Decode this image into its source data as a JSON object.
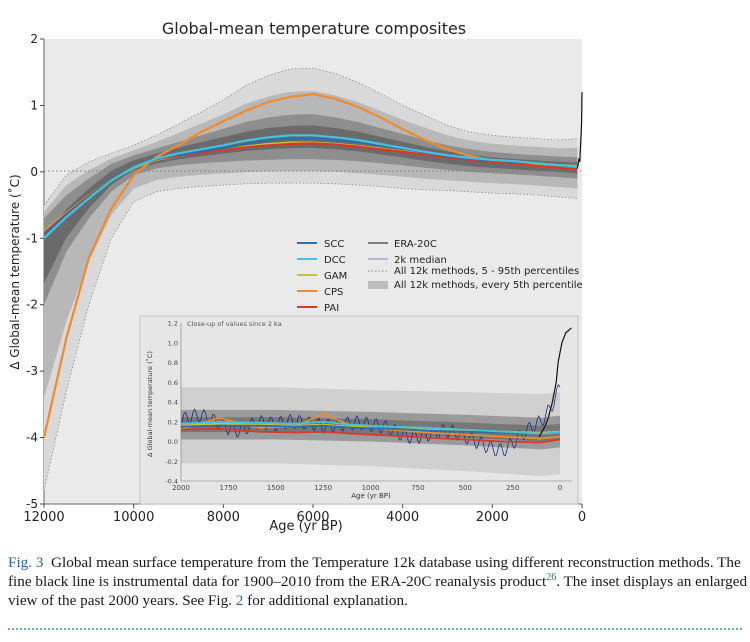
{
  "figure": {
    "title": "Global-mean temperature composites",
    "colors": {
      "SCC": "#2f6ea8",
      "DCC": "#45c2de",
      "GAM": "#c8c23a",
      "CPS": "#f08a2c",
      "PAI": "#d83a2a",
      "ERA": "#111111",
      "median2k": "#1f2a8a",
      "bandLight": "#d9d9d9",
      "bandMid": "#b8b8b8",
      "bandDark": "#8e8e8e",
      "bandCore": "#6a6a6a",
      "plotBg": "#eaeaea"
    },
    "legend": {
      "scc": "SCC",
      "dcc": "DCC",
      "gam": "GAM",
      "cps": "CPS",
      "pai": "PAI",
      "era": "ERA-20C",
      "median": "2k median",
      "pct": "All 12k methods, 5 - 95th percentiles",
      "every5": "All 12k methods, every 5th percentile"
    }
  },
  "chart_data": [
    {
      "type": "line",
      "title": "Global-mean temperature composites",
      "xlabel": "Age (yr BP)",
      "ylabel": "Δ Global-mean temperature (˚C)",
      "xlim": [
        12000,
        0
      ],
      "ylim": [
        -5,
        2
      ],
      "x_ticks": [
        "12000",
        "10000",
        "8000",
        "6000",
        "4000",
        "2000",
        "0"
      ],
      "y_ticks": [
        "-5",
        "-4",
        "-3",
        "-2",
        "-1",
        "0",
        "1",
        "2"
      ],
      "legend_position": "center-right",
      "x": [
        12000,
        11500,
        11000,
        10500,
        10000,
        9500,
        9000,
        8500,
        8000,
        7500,
        7000,
        6500,
        6000,
        5500,
        5000,
        4500,
        4000,
        3500,
        3000,
        2500,
        2000,
        1500,
        1000,
        500,
        100
      ],
      "series": [
        {
          "name": "SCC",
          "values": [
            -0.95,
            -0.65,
            -0.38,
            -0.12,
            0.08,
            0.2,
            0.26,
            0.31,
            0.36,
            0.42,
            0.48,
            0.5,
            0.5,
            0.48,
            0.45,
            0.4,
            0.35,
            0.29,
            0.24,
            0.2,
            0.17,
            0.15,
            0.13,
            0.1,
            0.08
          ]
        },
        {
          "name": "DCC",
          "values": [
            -1.0,
            -0.68,
            -0.4,
            -0.13,
            0.07,
            0.2,
            0.28,
            0.34,
            0.4,
            0.47,
            0.52,
            0.55,
            0.55,
            0.52,
            0.48,
            0.42,
            0.36,
            0.3,
            0.25,
            0.21,
            0.18,
            0.16,
            0.13,
            0.1,
            0.08
          ]
        },
        {
          "name": "GAM",
          "values": [
            -0.9,
            -0.62,
            -0.36,
            -0.12,
            0.06,
            0.18,
            0.25,
            0.3,
            0.34,
            0.38,
            0.42,
            0.44,
            0.44,
            0.42,
            0.39,
            0.35,
            0.31,
            0.27,
            0.23,
            0.19,
            0.16,
            0.14,
            0.12,
            0.1,
            0.09
          ]
        },
        {
          "name": "CPS",
          "values": [
            -4.0,
            -2.5,
            -1.3,
            -0.55,
            -0.05,
            0.22,
            0.4,
            0.6,
            0.76,
            0.92,
            1.05,
            1.13,
            1.17,
            1.1,
            0.98,
            0.82,
            0.64,
            0.48,
            0.34,
            0.24,
            0.17,
            0.12,
            0.09,
            0.06,
            0.05
          ]
        },
        {
          "name": "PAI",
          "values": [
            -0.92,
            -0.63,
            -0.37,
            -0.12,
            0.07,
            0.19,
            0.25,
            0.29,
            0.33,
            0.37,
            0.4,
            0.42,
            0.43,
            0.41,
            0.38,
            0.34,
            0.3,
            0.26,
            0.22,
            0.18,
            0.15,
            0.12,
            0.09,
            0.06,
            0.04
          ]
        }
      ],
      "bands": {
        "p5": [
          -4.8,
          -3.3,
          -2.0,
          -1.0,
          -0.45,
          -0.3,
          -0.25,
          -0.22,
          -0.2,
          -0.18,
          -0.17,
          -0.17,
          -0.17,
          -0.18,
          -0.2,
          -0.22,
          -0.25,
          -0.27,
          -0.28,
          -0.3,
          -0.32,
          -0.33,
          -0.35,
          -0.38,
          -0.4
        ],
        "p95": [
          -0.5,
          -0.05,
          0.15,
          0.28,
          0.4,
          0.55,
          0.72,
          0.9,
          1.08,
          1.3,
          1.45,
          1.55,
          1.56,
          1.48,
          1.35,
          1.18,
          1.0,
          0.85,
          0.7,
          0.6,
          0.55,
          0.52,
          0.5,
          0.48,
          0.5
        ],
        "p25": [
          -2.0,
          -1.2,
          -0.7,
          -0.3,
          -0.05,
          0.05,
          0.1,
          0.13,
          0.15,
          0.17,
          0.18,
          0.19,
          0.19,
          0.18,
          0.16,
          0.13,
          0.1,
          0.06,
          0.03,
          0.0,
          -0.02,
          -0.04,
          -0.06,
          -0.08,
          -0.1
        ],
        "p75": [
          -0.7,
          -0.35,
          -0.1,
          0.12,
          0.25,
          0.35,
          0.45,
          0.55,
          0.65,
          0.75,
          0.82,
          0.86,
          0.87,
          0.82,
          0.75,
          0.66,
          0.57,
          0.48,
          0.4,
          0.34,
          0.3,
          0.27,
          0.25,
          0.23,
          0.22
        ]
      },
      "era20c": {
        "name": "ERA-20C",
        "x": [
          110,
          90,
          70,
          50,
          40,
          30,
          20,
          10,
          0
        ],
        "values": [
          0.05,
          0.1,
          0.2,
          0.15,
          0.3,
          0.45,
          0.55,
          0.75,
          1.2
        ]
      }
    },
    {
      "type": "line",
      "title": "Close-up of values since 2 ka",
      "xlabel": "Age (yr BP)",
      "ylabel": "Δ Global-mean temperature (˚C)",
      "xlim": [
        2000,
        -60
      ],
      "ylim": [
        -0.4,
        1.2
      ],
      "x_ticks": [
        "2000",
        "1750",
        "1500",
        "1250",
        "1000",
        "750",
        "500",
        "250",
        "0"
      ],
      "y_ticks": [
        "-0.4",
        "-0.2",
        "0.0",
        "0.2",
        "0.4",
        "0.6",
        "0.8",
        "1.0",
        "1.2"
      ],
      "x": [
        2000,
        1800,
        1600,
        1400,
        1250,
        1100,
        900,
        700,
        500,
        300,
        100,
        0
      ],
      "series": [
        {
          "name": "SCC",
          "values": [
            0.15,
            0.16,
            0.16,
            0.15,
            0.16,
            0.14,
            0.13,
            0.11,
            0.1,
            0.09,
            0.08,
            0.09
          ]
        },
        {
          "name": "DCC",
          "values": [
            0.18,
            0.2,
            0.19,
            0.18,
            0.2,
            0.17,
            0.15,
            0.14,
            0.12,
            0.1,
            0.08,
            0.09
          ]
        },
        {
          "name": "GAM",
          "values": [
            0.16,
            0.18,
            0.17,
            0.16,
            0.17,
            0.15,
            0.13,
            0.12,
            0.11,
            0.1,
            0.09,
            0.1
          ]
        },
        {
          "name": "CPS",
          "values": [
            0.12,
            0.24,
            0.14,
            0.15,
            0.28,
            0.16,
            0.12,
            0.09,
            0.07,
            0.05,
            0.03,
            0.05
          ]
        },
        {
          "name": "PAI",
          "values": [
            0.12,
            0.13,
            0.1,
            0.09,
            0.1,
            0.08,
            0.06,
            0.04,
            0.02,
            0.0,
            -0.01,
            0.02
          ]
        }
      ],
      "median2k": {
        "name": "2k median",
        "x": [
          2000,
          1900,
          1800,
          1700,
          1600,
          1500,
          1400,
          1300,
          1200,
          1100,
          1000,
          900,
          800,
          700,
          600,
          500,
          400,
          300,
          200,
          100,
          50,
          0
        ],
        "values": [
          0.18,
          0.22,
          0.2,
          0.16,
          0.2,
          0.12,
          0.18,
          0.22,
          0.2,
          0.16,
          0.12,
          0.14,
          0.1,
          0.08,
          0.06,
          0.02,
          0.0,
          -0.05,
          0.05,
          0.15,
          0.3,
          0.55
        ]
      },
      "era20c": {
        "name": "ERA-20C",
        "x": [
          110,
          80,
          60,
          40,
          20,
          10,
          -10,
          -30,
          -60
        ],
        "values": [
          0.05,
          0.15,
          0.25,
          0.4,
          0.6,
          0.8,
          1.0,
          1.1,
          1.15
        ]
      }
    }
  ],
  "caption": {
    "label": "Fig. 3",
    "text1": "Global mean surface temperature from the Temperature 12k database using different reconstruction methods. The fine black line is instrumental data for 1900–2010 from the ERA-20C reanalysis product",
    "ref1": "26",
    "text2": ". The inset displays an enlarged view of the past 2000 years. See Fig. ",
    "ref2": "2",
    "text3": " for additional explanation."
  }
}
